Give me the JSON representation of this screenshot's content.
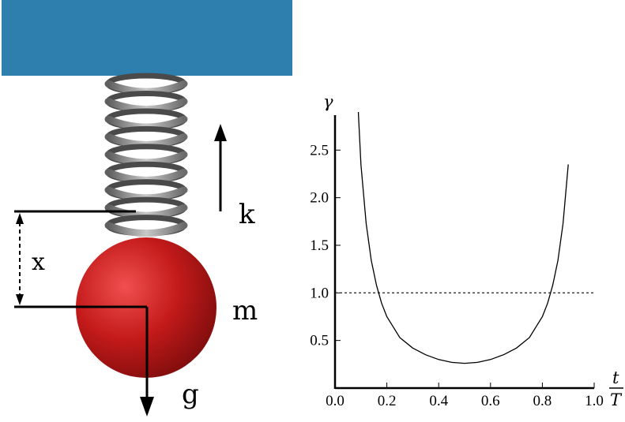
{
  "diagram": {
    "labels": {
      "spring_constant": "k",
      "displacement": "x",
      "mass": "m",
      "gravity": "g"
    },
    "colors": {
      "ceiling": "#2e7fad",
      "ball": "#c81e1e",
      "spring": "#808080"
    }
  },
  "chart_data": {
    "type": "line",
    "ylabel": "γ",
    "xlabel_num": "t",
    "xlabel_den": "T",
    "xlim": [
      0.0,
      1.0
    ],
    "ylim": [
      0.0,
      2.9
    ],
    "x_ticks": [
      "0.0",
      "0.2",
      "0.4",
      "0.6",
      "0.8",
      "1.0"
    ],
    "y_ticks": [
      "0.5",
      "1.0",
      "1.5",
      "2.0",
      "2.5"
    ],
    "reference_line_y": 1.0,
    "series": [
      {
        "x": [
          0.09,
          0.1,
          0.12,
          0.14,
          0.16,
          0.18,
          0.2,
          0.25,
          0.3,
          0.35,
          0.4,
          0.45,
          0.5,
          0.55,
          0.6,
          0.65,
          0.7,
          0.75,
          0.8,
          0.82,
          0.84,
          0.86,
          0.88,
          0.9
        ],
        "y": [
          2.9,
          2.35,
          1.73,
          1.34,
          1.08,
          0.89,
          0.75,
          0.53,
          0.42,
          0.35,
          0.3,
          0.27,
          0.26,
          0.27,
          0.3,
          0.35,
          0.42,
          0.53,
          0.75,
          0.89,
          1.08,
          1.34,
          1.73,
          2.35
        ]
      }
    ]
  }
}
